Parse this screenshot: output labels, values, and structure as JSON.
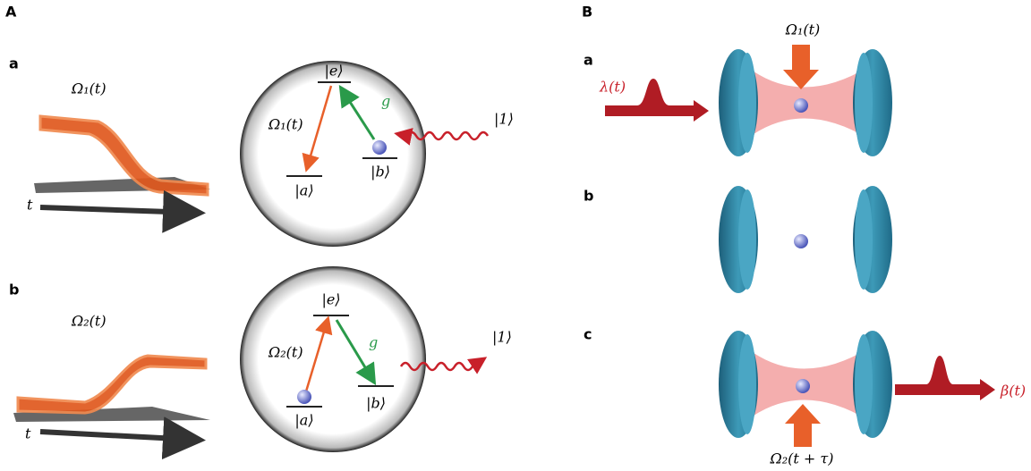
{
  "panel_A": {
    "label": "A",
    "rows": [
      {
        "label": "a",
        "pulse_label": "Ω₁(t)",
        "time_label": "t",
        "level_e": "|e⟩",
        "level_a": "|a⟩",
        "level_b": "|b⟩",
        "drive_label": "Ω₁(t)",
        "coupling_label": "g",
        "photon_label": "|1⟩"
      },
      {
        "label": "b",
        "pulse_label": "Ω₂(t)",
        "time_label": "t",
        "level_e": "|e⟩",
        "level_a": "|a⟩",
        "level_b": "|b⟩",
        "drive_label": "Ω₂(t)",
        "coupling_label": "g",
        "photon_label": "|1⟩"
      }
    ]
  },
  "panel_B": {
    "label": "B",
    "rows": [
      {
        "label": "a",
        "pump_label": "Ω₁(t)",
        "input_label": "λ(t)"
      },
      {
        "label": "b"
      },
      {
        "label": "c",
        "pump_label": "Ω₂(t + τ)",
        "output_label": "β(t)"
      }
    ]
  }
}
